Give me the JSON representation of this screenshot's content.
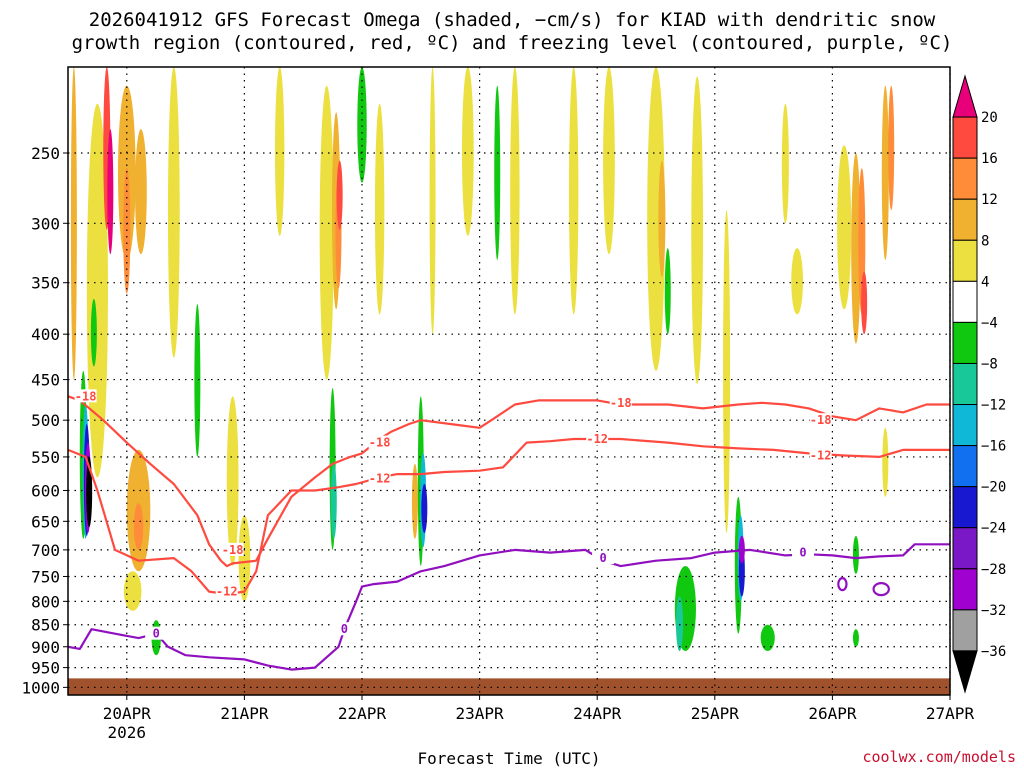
{
  "chart_data": {
    "type": "heatmap",
    "title_lines": [
      "2026041912 GFS Forecast Omega (shaded, −cm/s) for KIAD with dendritic snow",
      "growth region (contoured, red, ºC) and freezing level (contoured, purple, ºC)"
    ],
    "xlabel": "Forecast Time (UTC)",
    "ylabel": "",
    "credit": "coolwx.com/models",
    "x_ticks": [
      {
        "label": "20APR",
        "sub": "2026",
        "day": 20
      },
      {
        "label": "21APR",
        "sub": "",
        "day": 21
      },
      {
        "label": "22APR",
        "sub": "",
        "day": 22
      },
      {
        "label": "23APR",
        "sub": "",
        "day": 23
      },
      {
        "label": "24APR",
        "sub": "",
        "day": 24
      },
      {
        "label": "25APR",
        "sub": "",
        "day": 25
      },
      {
        "label": "26APR",
        "sub": "",
        "day": 26
      },
      {
        "label": "27APR",
        "sub": "",
        "day": 27
      }
    ],
    "xlim_days": [
      19.5,
      27.0
    ],
    "y_ticks": [
      250,
      300,
      350,
      400,
      450,
      500,
      550,
      600,
      650,
      700,
      750,
      800,
      850,
      900,
      950,
      1000
    ],
    "ylim_hpa": [
      200,
      1020
    ],
    "y_scale": "log-pressure",
    "grid": true,
    "colorbar": {
      "labels": [
        "20",
        "16",
        "12",
        "8",
        "4",
        "−4",
        "−8",
        "−12",
        "−16",
        "−20",
        "−24",
        "−28",
        "−32",
        "−36"
      ],
      "colors": [
        "#e8007a",
        "#ff4a40",
        "#ff8c38",
        "#f0b030",
        "#ece040",
        "#ffffff",
        "#10c810",
        "#18c898",
        "#10b8d8",
        "#1070f0",
        "#1818d0",
        "#7a18c8",
        "#a000d0",
        "#a0a0a0",
        "#000000"
      ]
    },
    "shade_blobs": [
      {
        "day": 19.55,
        "p": 320,
        "w": 0.04,
        "h": 260,
        "level": 8
      },
      {
        "day": 19.75,
        "p": 400,
        "w": 0.18,
        "h": 360,
        "level": 4
      },
      {
        "day": 19.83,
        "p": 250,
        "w": 0.06,
        "h": 110,
        "level": 16
      },
      {
        "day": 19.86,
        "p": 280,
        "w": 0.05,
        "h": 90,
        "level": 20
      },
      {
        "day": 20.0,
        "p": 270,
        "w": 0.15,
        "h": 120,
        "level": 8
      },
      {
        "day": 20.0,
        "p": 310,
        "w": 0.06,
        "h": 100,
        "level": 12
      },
      {
        "day": 20.12,
        "p": 280,
        "w": 0.1,
        "h": 90,
        "level": 8
      },
      {
        "day": 20.4,
        "p": 300,
        "w": 0.1,
        "h": 250,
        "level": 4
      },
      {
        "day": 20.1,
        "p": 640,
        "w": 0.2,
        "h": 200,
        "level": 8
      },
      {
        "day": 20.1,
        "p": 660,
        "w": 0.08,
        "h": 80,
        "level": 12
      },
      {
        "day": 20.05,
        "p": 780,
        "w": 0.15,
        "h": 80,
        "level": 4
      },
      {
        "day": 19.63,
        "p": 560,
        "w": 0.06,
        "h": 240,
        "level": -8
      },
      {
        "day": 19.65,
        "p": 580,
        "w": 0.05,
        "h": 200,
        "level": -16
      },
      {
        "day": 19.66,
        "p": 590,
        "w": 0.04,
        "h": 170,
        "level": -24
      },
      {
        "day": 19.67,
        "p": 600,
        "w": 0.03,
        "h": 140,
        "level": -32
      },
      {
        "day": 19.68,
        "p": 605,
        "w": 0.025,
        "h": 110,
        "level": -36
      },
      {
        "day": 19.72,
        "p": 400,
        "w": 0.03,
        "h": 70,
        "level": -8
      },
      {
        "day": 20.25,
        "p": 880,
        "w": 0.08,
        "h": 80,
        "level": -8
      },
      {
        "day": 20.6,
        "p": 460,
        "w": 0.05,
        "h": 180,
        "level": -8
      },
      {
        "day": 20.9,
        "p": 600,
        "w": 0.1,
        "h": 260,
        "level": 4
      },
      {
        "day": 21.0,
        "p": 720,
        "w": 0.1,
        "h": 160,
        "level": 4
      },
      {
        "day": 21.3,
        "p": 250,
        "w": 0.08,
        "h": 120,
        "level": 4
      },
      {
        "day": 21.7,
        "p": 330,
        "w": 0.12,
        "h": 240,
        "level": 4
      },
      {
        "day": 21.78,
        "p": 300,
        "w": 0.07,
        "h": 150,
        "level": 8
      },
      {
        "day": 21.8,
        "p": 310,
        "w": 0.04,
        "h": 90,
        "level": 12
      },
      {
        "day": 21.81,
        "p": 280,
        "w": 0.03,
        "h": 50,
        "level": 16
      },
      {
        "day": 21.75,
        "p": 580,
        "w": 0.05,
        "h": 240,
        "level": -8
      },
      {
        "day": 21.76,
        "p": 620,
        "w": 0.03,
        "h": 120,
        "level": -12
      },
      {
        "day": 22.0,
        "p": 220,
        "w": 0.08,
        "h": 100,
        "level": -8
      },
      {
        "day": 22.15,
        "p": 300,
        "w": 0.08,
        "h": 160,
        "level": 4
      },
      {
        "day": 22.45,
        "p": 620,
        "w": 0.05,
        "h": 120,
        "level": 8
      },
      {
        "day": 22.5,
        "p": 600,
        "w": 0.04,
        "h": 260,
        "level": -8
      },
      {
        "day": 22.52,
        "p": 620,
        "w": 0.03,
        "h": 150,
        "level": -16
      },
      {
        "day": 22.53,
        "p": 630,
        "w": 0.015,
        "h": 80,
        "level": -24
      },
      {
        "day": 22.6,
        "p": 300,
        "w": 0.05,
        "h": 200,
        "level": 4
      },
      {
        "day": 22.9,
        "p": 250,
        "w": 0.1,
        "h": 120,
        "level": 4
      },
      {
        "day": 23.3,
        "p": 280,
        "w": 0.08,
        "h": 200,
        "level": 4
      },
      {
        "day": 23.15,
        "p": 270,
        "w": 0.05,
        "h": 120,
        "level": -8
      },
      {
        "day": 23.8,
        "p": 280,
        "w": 0.08,
        "h": 200,
        "level": 4
      },
      {
        "day": 24.1,
        "p": 250,
        "w": 0.1,
        "h": 150,
        "level": 4
      },
      {
        "day": 24.5,
        "p": 320,
        "w": 0.15,
        "h": 240,
        "level": 4
      },
      {
        "day": 24.55,
        "p": 300,
        "w": 0.06,
        "h": 90,
        "level": 8
      },
      {
        "day": 24.6,
        "p": 360,
        "w": 0.05,
        "h": 80,
        "level": -8
      },
      {
        "day": 24.85,
        "p": 330,
        "w": 0.1,
        "h": 250,
        "level": 4
      },
      {
        "day": 24.75,
        "p": 820,
        "w": 0.18,
        "h": 180,
        "level": -8
      },
      {
        "day": 24.7,
        "p": 850,
        "w": 0.06,
        "h": 120,
        "level": -12
      },
      {
        "day": 25.1,
        "p": 480,
        "w": 0.06,
        "h": 380,
        "level": 4
      },
      {
        "day": 25.2,
        "p": 740,
        "w": 0.06,
        "h": 260,
        "level": -8
      },
      {
        "day": 25.22,
        "p": 720,
        "w": 0.045,
        "h": 160,
        "level": -16
      },
      {
        "day": 25.23,
        "p": 740,
        "w": 0.03,
        "h": 100,
        "level": -24
      },
      {
        "day": 25.23,
        "p": 700,
        "w": 0.02,
        "h": 50,
        "level": -32
      },
      {
        "day": 25.45,
        "p": 880,
        "w": 0.12,
        "h": 60,
        "level": -8
      },
      {
        "day": 25.6,
        "p": 260,
        "w": 0.06,
        "h": 80,
        "level": 4
      },
      {
        "day": 25.7,
        "p": 350,
        "w": 0.1,
        "h": 60,
        "level": 4
      },
      {
        "day": 26.1,
        "p": 310,
        "w": 0.12,
        "h": 130,
        "level": 4
      },
      {
        "day": 26.2,
        "p": 330,
        "w": 0.08,
        "h": 160,
        "level": 8
      },
      {
        "day": 26.25,
        "p": 320,
        "w": 0.06,
        "h": 120,
        "level": 12
      },
      {
        "day": 26.27,
        "p": 370,
        "w": 0.04,
        "h": 60,
        "level": 16
      },
      {
        "day": 26.45,
        "p": 270,
        "w": 0.06,
        "h": 120,
        "level": 8
      },
      {
        "day": 26.5,
        "p": 250,
        "w": 0.05,
        "h": 80,
        "level": 12
      },
      {
        "day": 26.45,
        "p": 560,
        "w": 0.05,
        "h": 100,
        "level": 4
      },
      {
        "day": 26.2,
        "p": 710,
        "w": 0.04,
        "h": 70,
        "level": -8
      },
      {
        "day": 26.2,
        "p": 880,
        "w": 0.03,
        "h": 40,
        "level": -8
      }
    ],
    "series": [
      {
        "label": "-18",
        "kind": "red",
        "days": [
          19.5,
          19.6,
          19.8,
          20.0,
          20.2,
          20.4,
          20.6,
          20.7,
          20.8,
          20.85,
          20.9,
          21.1,
          21.2,
          21.4,
          21.6,
          21.75,
          21.9,
          22.0,
          22.15,
          22.25,
          22.4,
          22.5,
          22.75,
          23.0,
          23.1,
          23.3,
          23.5,
          23.8,
          24.0,
          24.2,
          24.6,
          24.9,
          25.2,
          25.4,
          25.6,
          25.8,
          26.0,
          26.2,
          26.4,
          26.6,
          26.8,
          27.0
        ],
        "p": [
          470,
          475,
          500,
          530,
          560,
          590,
          640,
          690,
          720,
          730,
          725,
          720,
          680,
          610,
          580,
          560,
          550,
          545,
          525,
          515,
          505,
          500,
          505,
          510,
          500,
          480,
          475,
          475,
          475,
          480,
          480,
          485,
          480,
          478,
          480,
          485,
          495,
          500,
          485,
          490,
          480,
          480
        ],
        "label_at": [
          [
            19.65,
            470
          ],
          [
            20.9,
            700
          ],
          [
            22.15,
            530
          ],
          [
            24.2,
            478
          ],
          [
            25.9,
            500
          ]
        ]
      },
      {
        "label": "-12",
        "kind": "red",
        "days": [
          19.5,
          19.65,
          19.75,
          19.9,
          20.1,
          20.4,
          20.55,
          20.7,
          20.85,
          21.0,
          21.1,
          21.2,
          21.4,
          21.6,
          21.8,
          21.95,
          22.15,
          22.3,
          22.5,
          22.7,
          23.0,
          23.2,
          23.4,
          23.6,
          23.8,
          24.0,
          24.2,
          24.6,
          24.9,
          25.2,
          25.5,
          25.8,
          26.1,
          26.4,
          26.6,
          26.9,
          27.0
        ],
        "p": [
          540,
          550,
          600,
          700,
          720,
          715,
          740,
          780,
          785,
          780,
          740,
          640,
          600,
          600,
          595,
          590,
          580,
          575,
          575,
          572,
          570,
          565,
          530,
          528,
          525,
          525,
          525,
          530,
          535,
          538,
          540,
          545,
          548,
          550,
          540,
          540,
          540
        ],
        "label_at": [
          [
            20.85,
            780
          ],
          [
            22.15,
            582
          ],
          [
            24.0,
            525
          ],
          [
            25.9,
            548
          ]
        ]
      },
      {
        "label": "0",
        "kind": "purple",
        "days": [
          19.5,
          19.6,
          19.7,
          19.9,
          20.1,
          20.25,
          20.35,
          20.5,
          20.7,
          21.0,
          21.2,
          21.4,
          21.6,
          21.8,
          21.85,
          21.95,
          22.0,
          22.1,
          22.3,
          22.5,
          22.7,
          23.0,
          23.3,
          23.6,
          23.9,
          24.05,
          24.2,
          24.5,
          24.8,
          25.0,
          25.3,
          25.6,
          25.8,
          26.0,
          26.2,
          26.4,
          26.6,
          26.7,
          26.9,
          27.0
        ],
        "p": [
          900,
          905,
          860,
          870,
          880,
          870,
          900,
          920,
          925,
          930,
          945,
          955,
          950,
          900,
          860,
          800,
          770,
          765,
          760,
          740,
          730,
          710,
          700,
          705,
          700,
          720,
          730,
          720,
          715,
          705,
          700,
          710,
          708,
          710,
          715,
          712,
          710,
          690,
          690,
          690
        ],
        "label_at": [
          [
            20.25,
            870
          ],
          [
            21.85,
            860
          ],
          [
            24.05,
            715
          ],
          [
            25.75,
            705
          ]
        ]
      },
      {
        "label": "",
        "kind": "purple-loop",
        "days": [
          26.05,
          26.12
        ],
        "p": [
          765,
          765
        ],
        "label_at": []
      },
      {
        "label": "",
        "kind": "purple-loop",
        "days": [
          26.35,
          26.48
        ],
        "p": [
          775,
          775
        ],
        "label_at": []
      }
    ],
    "line_colors": {
      "red": "#ff4a40",
      "purple": "#9010c0",
      "surface": "#a0522d"
    }
  }
}
